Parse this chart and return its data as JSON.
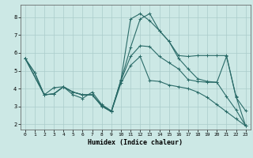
{
  "xlabel": "Humidex (Indice chaleur)",
  "xlim": [
    -0.5,
    23.5
  ],
  "ylim": [
    1.7,
    8.7
  ],
  "yticks": [
    2,
    3,
    4,
    5,
    6,
    7,
    8
  ],
  "xticks": [
    0,
    1,
    2,
    3,
    4,
    5,
    6,
    7,
    8,
    9,
    10,
    11,
    12,
    13,
    14,
    15,
    16,
    17,
    18,
    19,
    20,
    21,
    22,
    23
  ],
  "bg_color": "#cce8e5",
  "grid_color": "#aaccca",
  "line_color": "#2a6b68",
  "lines": [
    {
      "x": [
        0,
        1,
        2,
        3,
        4,
        5,
        6,
        7,
        8,
        9,
        10,
        11,
        12,
        13,
        14,
        15,
        16,
        17,
        18,
        19,
        20,
        21,
        22,
        23
      ],
      "y": [
        5.7,
        4.9,
        3.65,
        3.7,
        4.1,
        3.8,
        3.65,
        3.65,
        3.0,
        2.7,
        4.5,
        7.9,
        8.2,
        7.8,
        7.25,
        6.65,
        5.85,
        5.8,
        5.85,
        5.85,
        5.85,
        5.85,
        3.5,
        2.75
      ]
    },
    {
      "x": [
        0,
        1,
        2,
        3,
        4,
        5,
        6,
        7,
        8,
        9,
        10,
        11,
        12,
        13,
        14,
        15,
        16,
        17,
        18,
        19,
        20,
        21,
        22,
        23
      ],
      "y": [
        5.7,
        4.9,
        3.65,
        4.05,
        4.1,
        3.65,
        3.45,
        3.8,
        3.1,
        2.75,
        4.45,
        6.3,
        7.9,
        8.2,
        7.25,
        6.65,
        5.7,
        5.1,
        4.55,
        4.4,
        4.35,
        3.55,
        2.8,
        1.9
      ]
    },
    {
      "x": [
        0,
        2,
        3,
        4,
        5,
        6,
        7,
        8,
        9,
        10,
        11,
        12,
        13,
        14,
        15,
        16,
        17,
        18,
        19,
        20,
        21,
        22,
        23
      ],
      "y": [
        5.7,
        3.65,
        3.7,
        4.1,
        3.8,
        3.65,
        3.65,
        3.05,
        2.7,
        4.45,
        5.8,
        6.4,
        6.35,
        5.8,
        5.45,
        5.1,
        4.5,
        4.4,
        4.35,
        4.35,
        5.8,
        3.55,
        1.9
      ]
    },
    {
      "x": [
        0,
        2,
        3,
        4,
        5,
        6,
        7,
        8,
        9,
        10,
        11,
        12,
        13,
        14,
        15,
        16,
        17,
        18,
        19,
        20,
        21,
        22,
        23
      ],
      "y": [
        5.7,
        3.65,
        3.7,
        4.1,
        3.8,
        3.65,
        3.65,
        3.05,
        2.7,
        4.3,
        5.3,
        5.8,
        4.45,
        4.4,
        4.2,
        4.1,
        4.0,
        3.8,
        3.5,
        3.1,
        2.7,
        2.3,
        1.9
      ]
    }
  ]
}
